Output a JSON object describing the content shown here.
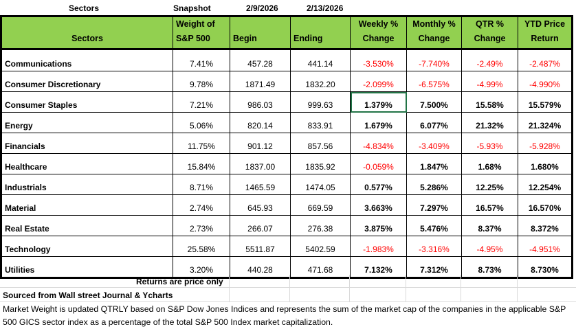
{
  "top_row": {
    "sectors": "Sectors",
    "snapshot": "Snapshot",
    "begin_date": "2/9/2026",
    "end_date": "2/13/2026"
  },
  "headers": {
    "sectors": "Sectors",
    "weight": [
      "Weight of",
      "S&P 500"
    ],
    "begin": "Begin",
    "ending": "Ending",
    "weekly": [
      "Weekly %",
      "Change"
    ],
    "monthly": [
      "Monthly %",
      "Change"
    ],
    "qtr": [
      "QTR %",
      "Change"
    ],
    "ytd": [
      "YTD Price",
      "Return"
    ]
  },
  "rows": [
    {
      "sector": "Communications",
      "weight": "7.41%",
      "begin": "457.28",
      "ending": "441.14",
      "weekly": "-3.530%",
      "monthly": "-7.740%",
      "qtr": "-2.49%",
      "ytd": "-2.487%"
    },
    {
      "sector": "Consumer Discretionary",
      "weight": "9.78%",
      "begin": "1871.49",
      "ending": "1832.20",
      "weekly": "-2.099%",
      "monthly": "-6.575%",
      "qtr": "-4.99%",
      "ytd": "-4.990%"
    },
    {
      "sector": "Consumer Staples",
      "weight": "7.21%",
      "begin": "986.03",
      "ending": "999.63",
      "weekly": "1.379%",
      "monthly": "7.500%",
      "qtr": "15.58%",
      "ytd": "15.579%"
    },
    {
      "sector": "Energy",
      "weight": "5.06%",
      "begin": "820.14",
      "ending": "833.91",
      "weekly": "1.679%",
      "monthly": "6.077%",
      "qtr": "21.32%",
      "ytd": "21.324%"
    },
    {
      "sector": "Financials",
      "weight": "11.75%",
      "begin": "901.12",
      "ending": "857.56",
      "weekly": "-4.834%",
      "monthly": "-3.409%",
      "qtr": "-5.93%",
      "ytd": "-5.928%"
    },
    {
      "sector": "Healthcare",
      "weight": "15.84%",
      "begin": "1837.00",
      "ending": "1835.92",
      "weekly": "-0.059%",
      "monthly": "1.847%",
      "qtr": "1.68%",
      "ytd": "1.680%"
    },
    {
      "sector": "Industrials",
      "weight": "8.71%",
      "begin": "1465.59",
      "ending": "1474.05",
      "weekly": "0.577%",
      "monthly": "5.286%",
      "qtr": "12.25%",
      "ytd": "12.254%"
    },
    {
      "sector": "Material",
      "weight": "2.74%",
      "begin": "645.93",
      "ending": "669.59",
      "weekly": "3.663%",
      "monthly": "7.297%",
      "qtr": "16.57%",
      "ytd": "16.570%"
    },
    {
      "sector": "Real Estate",
      "weight": "2.73%",
      "begin": "266.07",
      "ending": "276.38",
      "weekly": "3.875%",
      "monthly": "5.476%",
      "qtr": "8.37%",
      "ytd": "8.372%"
    },
    {
      "sector": "Technology",
      "weight": "25.58%",
      "begin": "5511.87",
      "ending": "5402.59",
      "weekly": "-1.983%",
      "monthly": "-3.316%",
      "qtr": "-4.95%",
      "ytd": "-4.951%"
    },
    {
      "sector": "Utilities",
      "weight": "3.20%",
      "begin": "440.28",
      "ending": "471.68",
      "weekly": "7.132%",
      "monthly": "7.312%",
      "qtr": "8.73%",
      "ytd": "8.730%"
    }
  ],
  "footer": {
    "returns_note": "Returns are price only",
    "source": "Sourced from Wall street Journal & Ycharts",
    "weight_note": "Market Weight is updated QTRLY based on S&P Dow Jones Indices and represents the sum of the market cap of the companies in the applicable S&P 500 GICS sector index as a percentage of the total S&P 500 Index market capitalization."
  },
  "colors": {
    "header_green": "#92D050",
    "negative": "#FF0000",
    "selection": "#217346"
  }
}
